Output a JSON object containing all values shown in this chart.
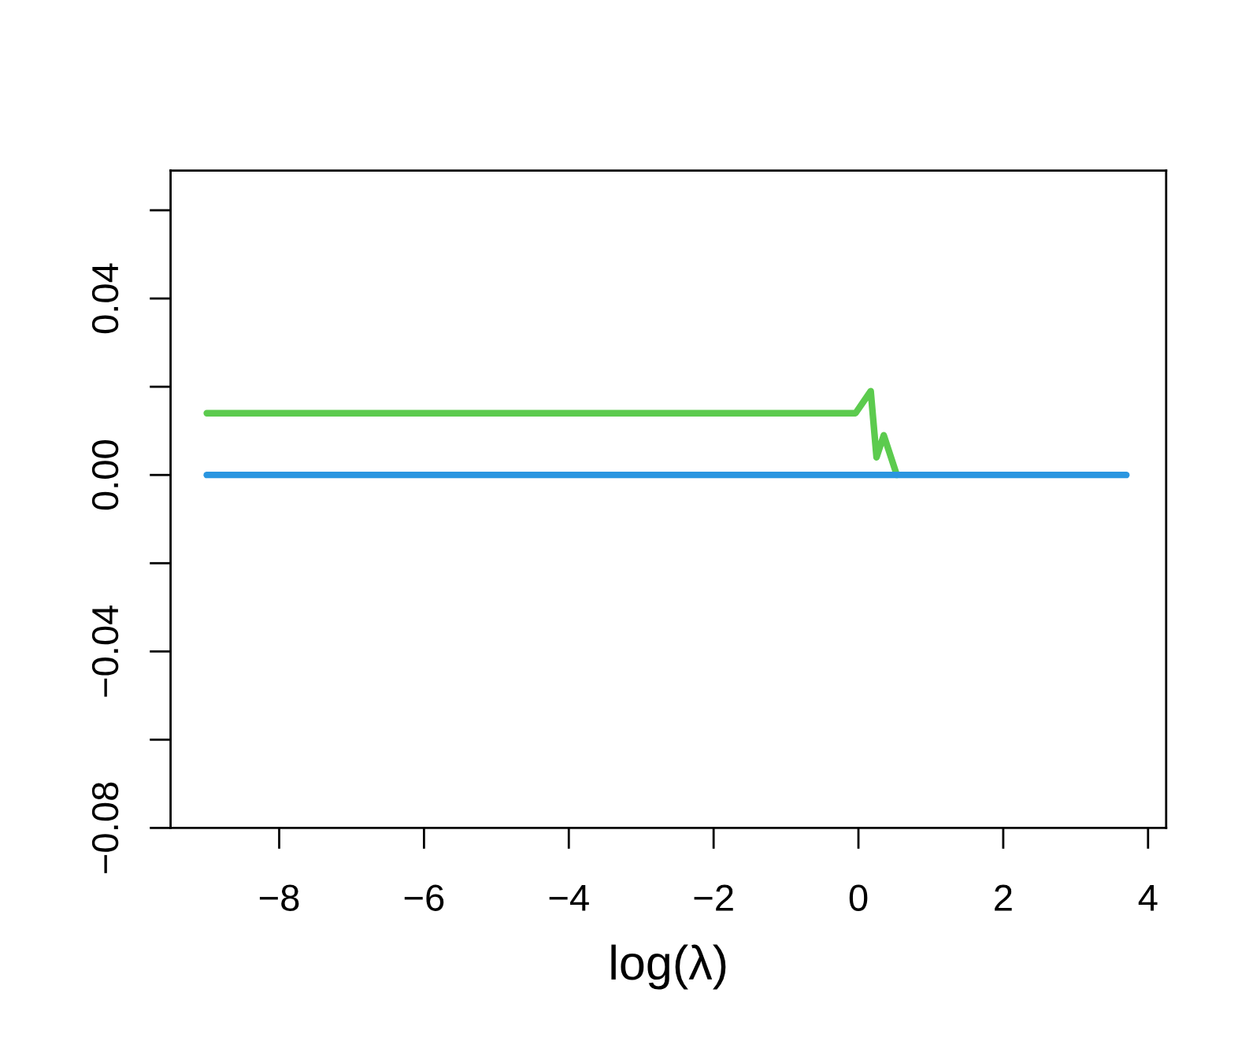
{
  "chart_data": {
    "type": "line",
    "xlabel": "log(λ)",
    "series": [
      {
        "color": "#5ccb4e",
        "x": [
          -9.0,
          -0.04,
          0.17,
          0.25,
          0.35,
          0.53
        ],
        "values": [
          0.014,
          0.014,
          0.019,
          0.004,
          0.009,
          0.0
        ]
      },
      {
        "color": "#2a96e0",
        "x": [
          -9.0,
          3.7
        ],
        "values": [
          0.0,
          0.0
        ]
      }
    ],
    "xlim": [
      -9.5,
      4.25
    ],
    "ylim": [
      -0.08,
      0.069
    ],
    "xticks": [
      {
        "value": -8,
        "label": "−8"
      },
      {
        "value": -6,
        "label": "−6"
      },
      {
        "value": -4,
        "label": "−4"
      },
      {
        "value": -2,
        "label": "−2"
      },
      0,
      2,
      4
    ],
    "yticks": [
      {
        "value": -0.08,
        "label": "−0.08"
      },
      {
        "value": -0.06,
        "label": null
      },
      {
        "value": -0.04,
        "label": "−0.04"
      },
      {
        "value": -0.02,
        "label": null
      },
      {
        "value": 0.0,
        "label": "0.00"
      },
      {
        "value": 0.02,
        "label": null
      },
      0.04,
      {
        "value": 0.06,
        "label": null
      }
    ],
    "grid": false,
    "line_style": "solid",
    "marker": "none"
  }
}
